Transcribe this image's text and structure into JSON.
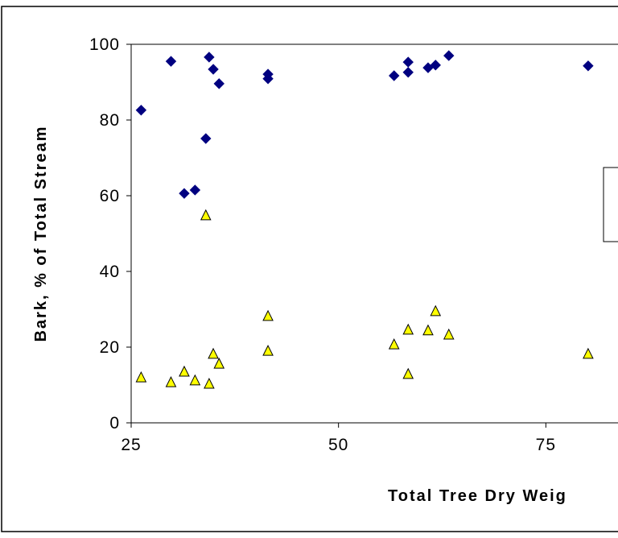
{
  "chart_data": {
    "type": "scatter",
    "x_label": "Total Tree Dry Weig",
    "y_label": "Bark, % of Total Stream",
    "xlim": [
      25,
      83.7
    ],
    "ylim": [
      0,
      100
    ],
    "xticks": [
      25,
      50,
      75
    ],
    "yticks": [
      0,
      20,
      40,
      60,
      80,
      100
    ],
    "series": [
      {
        "color": "#000080",
        "marker": "diamond",
        "x": [
          26.2,
          29.8,
          34.4,
          34.9,
          35.6,
          41.5,
          41.5,
          34.0,
          31.4,
          32.7,
          56.7,
          58.4,
          58.4,
          60.8,
          61.7,
          63.3,
          80.1
        ],
        "values": [
          82.6,
          95.5,
          96.6,
          93.4,
          89.6,
          92.1,
          90.9,
          75.1,
          60.6,
          61.5,
          91.7,
          92.6,
          95.3,
          93.8,
          94.5,
          97.0,
          94.3
        ]
      },
      {
        "color": "#ffff00",
        "marker": "triangle",
        "x": [
          26.2,
          29.8,
          31.4,
          32.7,
          34.4,
          34.9,
          35.6,
          34.0,
          41.5,
          41.5,
          56.7,
          58.4,
          58.4,
          60.8,
          61.7,
          63.3,
          80.1
        ],
        "values": [
          11.9,
          10.6,
          13.4,
          11.1,
          10.2,
          18.1,
          15.5,
          54.7,
          28.1,
          18.9,
          20.6,
          12.8,
          24.5,
          24.3,
          29.4,
          23.2,
          18.1
        ]
      }
    ]
  }
}
